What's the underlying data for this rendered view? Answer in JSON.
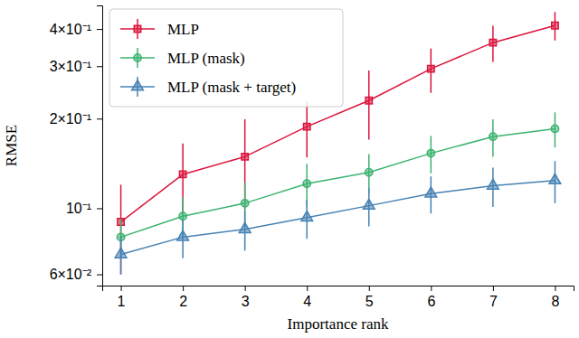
{
  "chart_data": {
    "type": "line",
    "x_label": "Importance rank",
    "y_label": "RMSE",
    "x": [
      1,
      2,
      3,
      4,
      5,
      6,
      7,
      8
    ],
    "xlim": [
      0.7,
      8.3
    ],
    "xticks": [
      1,
      2,
      3,
      4,
      5,
      6,
      7,
      8
    ],
    "ylim": [
      0.055,
      0.48
    ],
    "yticks": [
      {
        "value": 0.06,
        "label": "6×10⁻²"
      },
      {
        "value": 0.1,
        "label": "10⁻¹"
      },
      {
        "value": 0.2,
        "label": "2×10⁻¹"
      },
      {
        "value": 0.3,
        "label": "3×10⁻¹"
      },
      {
        "value": 0.4,
        "label": "4×10⁻¹"
      }
    ],
    "log": "y",
    "grid": false,
    "legend": "upper-left",
    "series": [
      {
        "name": "MLP",
        "color": "#dc143c",
        "marker": "square",
        "values": [
          0.09,
          0.13,
          0.149,
          0.188,
          0.23,
          0.294,
          0.36,
          0.411
        ],
        "error": [
          0.03,
          0.035,
          0.05,
          0.04,
          0.06,
          0.05,
          0.05,
          0.045
        ]
      },
      {
        "name": "MLP (mask)",
        "color": "#3cb371",
        "marker": "circle",
        "values": [
          0.08,
          0.094,
          0.104,
          0.121,
          0.132,
          0.153,
          0.174,
          0.185
        ],
        "error": [
          0.012,
          0.015,
          0.018,
          0.02,
          0.02,
          0.022,
          0.025,
          0.025
        ]
      },
      {
        "name": "MLP (mask + target)",
        "color": "#4682b4",
        "marker": "triangle",
        "values": [
          0.07,
          0.08,
          0.085,
          0.093,
          0.102,
          0.112,
          0.119,
          0.124
        ],
        "error": [
          0.01,
          0.012,
          0.013,
          0.014,
          0.015,
          0.016,
          0.018,
          0.02
        ]
      }
    ]
  }
}
